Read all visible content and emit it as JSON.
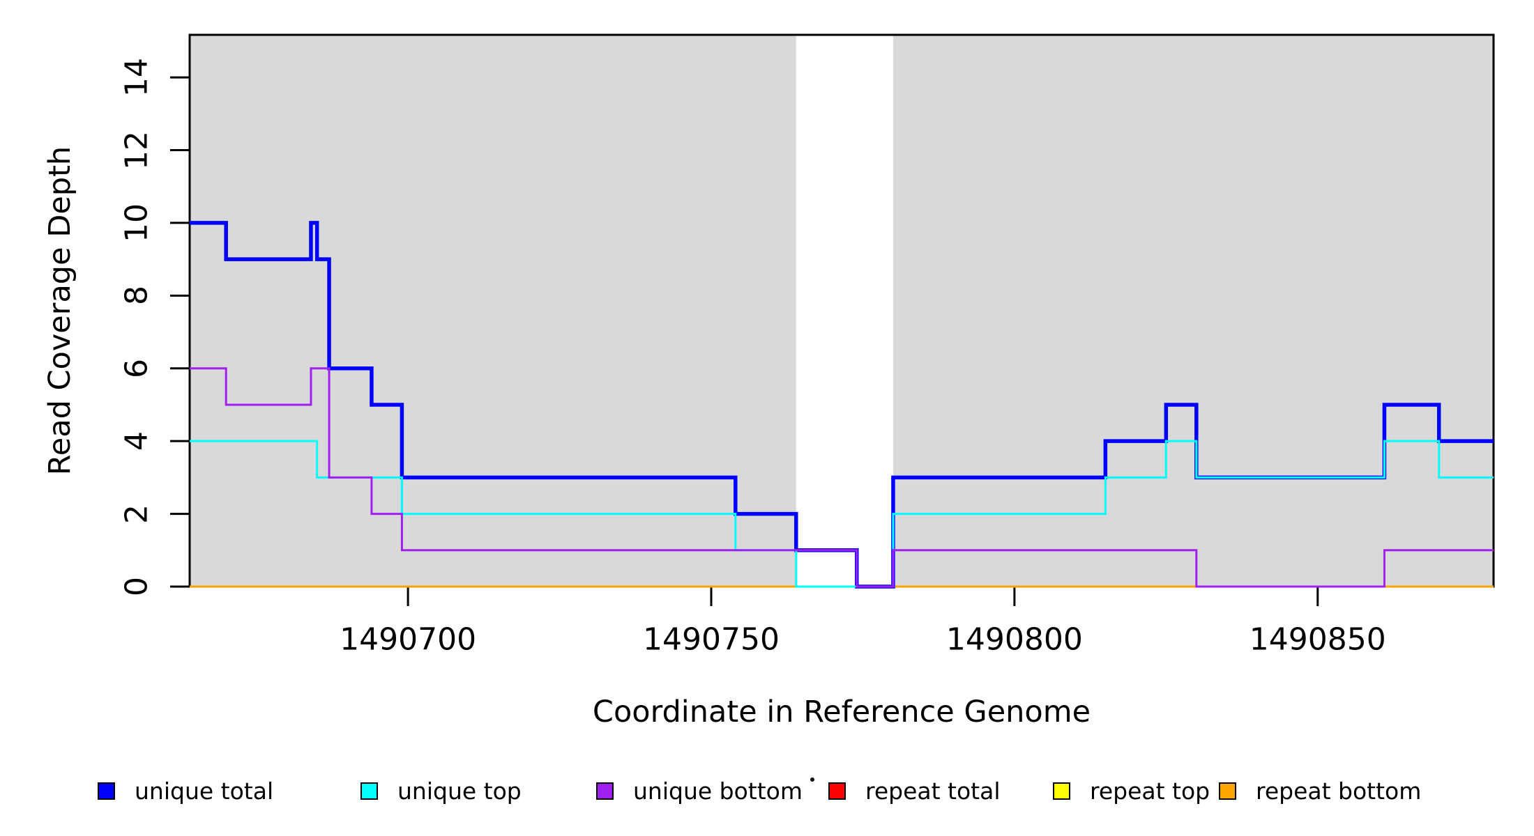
{
  "chart_data": {
    "type": "line",
    "subtype": "step",
    "title": "",
    "xlabel": "Coordinate in Reference Genome",
    "ylabel": "Read Coverage Depth",
    "xlim": [
      1490664,
      1490879
    ],
    "ylim": [
      0,
      15.17
    ],
    "grid": false,
    "legend_position": "bottom-horizontal",
    "background_color": "#FFFFFF",
    "box_color": "#000000",
    "x_ticks": [
      {
        "value": 1490700,
        "label": "1490700"
      },
      {
        "value": 1490750,
        "label": "1490750"
      },
      {
        "value": 1490800,
        "label": "1490800"
      },
      {
        "value": 1490850,
        "label": "1490850"
      }
    ],
    "y_ticks": [
      {
        "value": 0,
        "label": "0"
      },
      {
        "value": 2,
        "label": "2"
      },
      {
        "value": 4,
        "label": "4"
      },
      {
        "value": 6,
        "label": "6"
      },
      {
        "value": 8,
        "label": "8"
      },
      {
        "value": 10,
        "label": "10"
      },
      {
        "value": 12,
        "label": "12"
      },
      {
        "value": 14,
        "label": "14"
      }
    ],
    "shaded_regions": [
      {
        "name": "covered-region-left",
        "x0": 1490664,
        "x1": 1490764,
        "color": "#D9D9D9"
      },
      {
        "name": "covered-region-right",
        "x0": 1490780,
        "x1": 1490879,
        "color": "#D9D9D9"
      }
    ],
    "series": [
      {
        "name": "unique total",
        "color": "#0000FF",
        "line_width": 5.5,
        "draw_rank": 3,
        "steps": [
          [
            1490664,
            10
          ],
          [
            1490670,
            9
          ],
          [
            1490684,
            10
          ],
          [
            1490685,
            9
          ],
          [
            1490687,
            6
          ],
          [
            1490694,
            5
          ],
          [
            1490699,
            3
          ],
          [
            1490754,
            2
          ],
          [
            1490764,
            1
          ],
          [
            1490774,
            0
          ],
          [
            1490780,
            3
          ],
          [
            1490815,
            4
          ],
          [
            1490825,
            5
          ],
          [
            1490830,
            3
          ],
          [
            1490861,
            5
          ],
          [
            1490870,
            4
          ]
        ]
      },
      {
        "name": "unique top",
        "color": "#00FFFF",
        "line_width": 3,
        "draw_rank": 4,
        "steps": [
          [
            1490664,
            4
          ],
          [
            1490685,
            3
          ],
          [
            1490699,
            2
          ],
          [
            1490754,
            1
          ],
          [
            1490764,
            0
          ],
          [
            1490780,
            2
          ],
          [
            1490815,
            3
          ],
          [
            1490825,
            4
          ],
          [
            1490830,
            3
          ],
          [
            1490861,
            4
          ],
          [
            1490870,
            3
          ]
        ]
      },
      {
        "name": "unique bottom",
        "color": "#A020F0",
        "line_width": 3,
        "draw_rank": 5,
        "steps": [
          [
            1490664,
            6
          ],
          [
            1490670,
            5
          ],
          [
            1490684,
            6
          ],
          [
            1490687,
            3
          ],
          [
            1490694,
            2
          ],
          [
            1490699,
            1
          ],
          [
            1490774,
            0
          ],
          [
            1490780,
            1
          ],
          [
            1490830,
            0
          ],
          [
            1490861,
            1
          ]
        ]
      },
      {
        "name": "repeat total",
        "color": "#FF0000",
        "line_width": 3,
        "draw_rank": 0,
        "steps": [
          [
            1490664,
            0
          ]
        ]
      },
      {
        "name": "repeat top",
        "color": "#FFFF00",
        "line_width": 3,
        "draw_rank": 1,
        "steps": [
          [
            1490664,
            0
          ]
        ]
      },
      {
        "name": "repeat bottom",
        "color": "#FFA500",
        "line_width": 3,
        "draw_rank": 2,
        "steps": [
          [
            1490664,
            0
          ]
        ]
      }
    ]
  },
  "artifacts": {
    "stray_dot_near_legend": true
  }
}
